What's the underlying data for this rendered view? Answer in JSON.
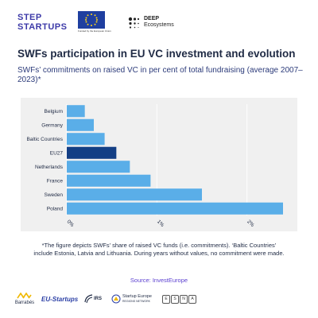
{
  "logos": {
    "step_startups_line1": "STEP",
    "step_startups_line2": "STARTUPS",
    "eu_caption": "Funded by the European Union",
    "deep_line1": "DEEP",
    "deep_line2": "Ecosystems"
  },
  "title": "SWFs participation in EU VC investment and evolution",
  "subtitle": "SWFs’ commitments on raised VC in per cent of total fundraising (average 2007–2023)*",
  "chart_data": {
    "type": "bar",
    "orientation": "horizontal",
    "title": "",
    "xlabel": "",
    "ylabel": "",
    "categories": [
      "Belgium",
      "Germany",
      "Baltic Countries",
      "EU27",
      "Netherlands",
      "France",
      "Sweden",
      "Poland"
    ],
    "values": [
      0.2,
      0.3,
      0.42,
      0.55,
      0.7,
      0.93,
      1.5,
      2.4
    ],
    "ticks": [
      "0%",
      "1%",
      "2%"
    ],
    "tick_values": [
      0,
      1,
      2
    ],
    "xlim": [
      0,
      2.4
    ],
    "grid": true,
    "colors": {
      "default": "#5aaee8",
      "highlight": "#143f85",
      "highlight_category": "EU27",
      "background": "#f0f0f0",
      "gridline": "#ffffff"
    }
  },
  "footnote": "*The figure depicts SWFs’ share of raised VC funds (i.e. commitments). ‘Baltic Countries’ include Estonia, Latvia and Lithuania. During years without values, no commitment were made.",
  "source": "Source: InvestEurope",
  "partners": {
    "barrabes": "Barrabés",
    "eu_startups": "EU-Startups",
    "irs": "IRS",
    "startup_europe": "Startup Europe",
    "startup_europe_sub": "REGIONS NETWORK",
    "esna_letters": [
      "E",
      "S",
      "N",
      "A"
    ]
  }
}
